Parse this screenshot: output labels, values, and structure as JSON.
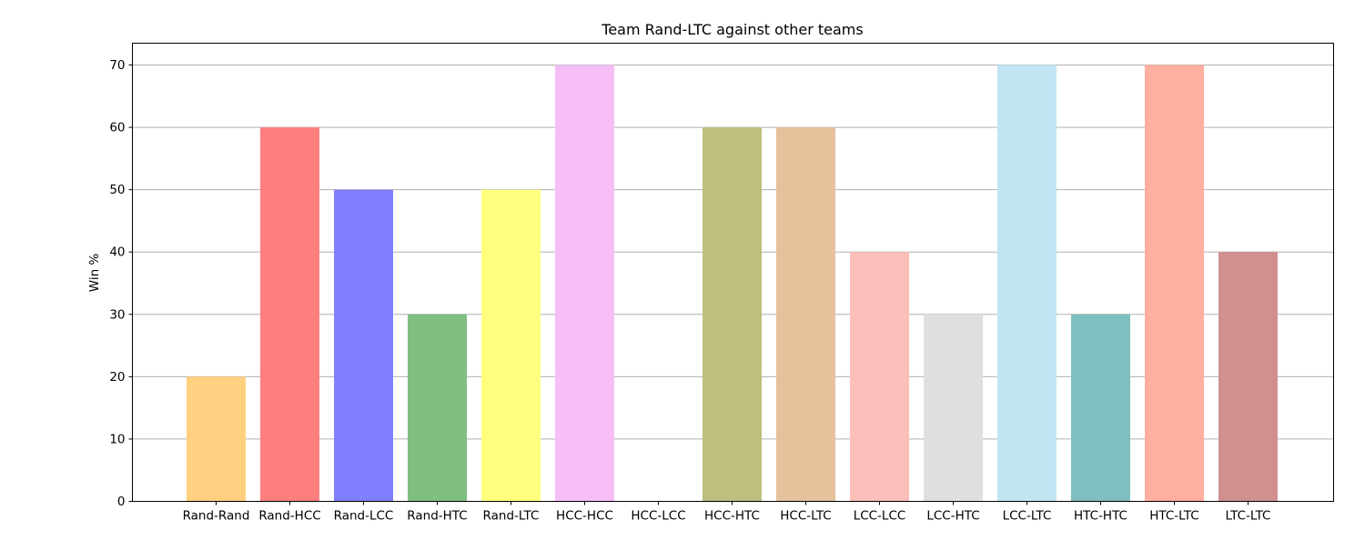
{
  "chart_data": {
    "type": "bar",
    "title": "Team Rand-LTC against other teams",
    "xlabel": "",
    "ylabel": "Win %",
    "categories": [
      "Rand-Rand",
      "Rand-HCC",
      "Rand-LCC",
      "Rand-HTC",
      "Rand-LTC",
      "HCC-HCC",
      "HCC-LCC",
      "HCC-HTC",
      "HCC-LTC",
      "LCC-LCC",
      "LCC-HTC",
      "LCC-LTC",
      "HTC-HTC",
      "HTC-LTC",
      "LTC-LTC"
    ],
    "values": [
      20,
      60,
      50,
      30,
      50,
      70,
      0,
      60,
      60,
      40,
      30,
      70,
      30,
      70,
      40
    ],
    "colors": [
      "#ffd07f",
      "#ff7f7f",
      "#7f7fff",
      "#7fbf7f",
      "#ffff7f",
      "#f5bff5",
      "#ffffff",
      "#bfbf7f",
      "#e5c19c",
      "#fdbfb9",
      "#dfdfdf",
      "#c1e5f3",
      "#7fbfbf",
      "#ffaf9f",
      "#d09090"
    ],
    "yticks": [
      0,
      10,
      20,
      30,
      40,
      50,
      60,
      70
    ],
    "ylim": [
      0,
      73.5
    ],
    "grid": "horizontal",
    "legend": "none"
  }
}
